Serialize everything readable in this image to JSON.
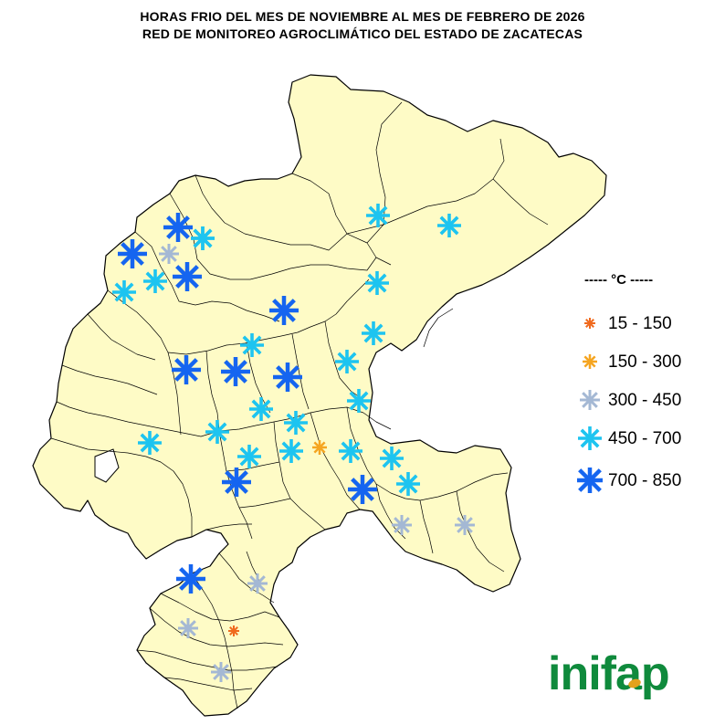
{
  "title": {
    "line1": "HORAS FRIO DEL MES DE NOVIEMBRE AL MES DE FEBRERO DE 2026",
    "line2": "RED DE MONITOREO AGROCLIMÁTICO DEL ESTADO DE ZACATECAS"
  },
  "legend": {
    "title": "----- °C -----",
    "items": [
      {
        "label": "15 - 150",
        "color": "#f06a1e",
        "icon": "small-asterisk-icon"
      },
      {
        "label": "150 - 300",
        "color": "#f5a521",
        "icon": "small-asterisk-icon"
      },
      {
        "label": "300 - 450",
        "color": "#a4b8d4",
        "icon": "medium-asterisk-icon"
      },
      {
        "label": "450 - 700",
        "color": "#1dc4f0",
        "icon": "large-asterisk-icon"
      },
      {
        "label": "700 - 850",
        "color": "#1565f0",
        "icon": "xlarge-asterisk-icon"
      }
    ]
  },
  "logo": {
    "text_left": "ini",
    "text_right": "ap"
  },
  "colors": {
    "land": "#fefbc6",
    "border": "#000000"
  },
  "stations": [
    {
      "cls": 4
    },
    {
      "cls": 3
    },
    {
      "cls": 3
    },
    {
      "cls": 3
    },
    {
      "cls": 3
    },
    {
      "cls": 4
    },
    {
      "cls": 3
    },
    {
      "cls": 4
    },
    {
      "cls": 2
    },
    {
      "cls": 4
    },
    {
      "cls": 3
    },
    {
      "cls": 3
    },
    {
      "cls": 3
    },
    {
      "cls": 3
    },
    {
      "cls": 4
    },
    {
      "cls": 4
    },
    {
      "cls": 4
    },
    {
      "cls": 3
    },
    {
      "cls": 3
    },
    {
      "cls": 3
    },
    {
      "cls": 3
    },
    {
      "cls": 3
    },
    {
      "cls": 3
    },
    {
      "cls": 1
    },
    {
      "cls": 3
    },
    {
      "cls": 3
    },
    {
      "cls": 3
    },
    {
      "cls": 4
    },
    {
      "cls": 3
    },
    {
      "cls": 4
    },
    {
      "cls": 3
    },
    {
      "cls": 2
    },
    {
      "cls": 2
    },
    {
      "cls": 4
    },
    {
      "cls": 2
    },
    {
      "cls": 2
    },
    {
      "cls": 0
    },
    {
      "cls": 2
    }
  ]
}
